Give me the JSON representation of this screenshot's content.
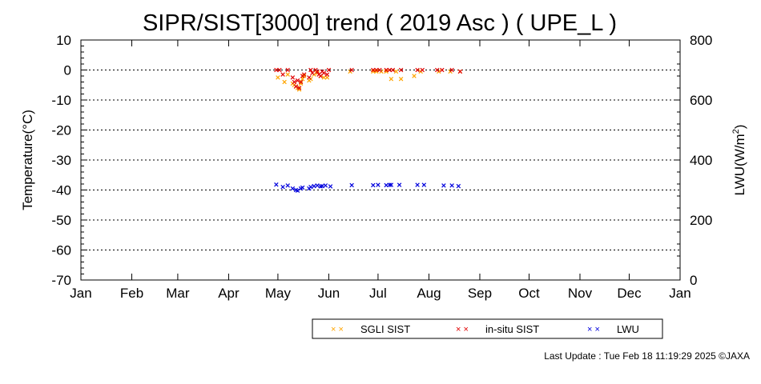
{
  "chart_data": {
    "type": "scatter",
    "title": "SIPR/SIST[3000] trend ( 2019 Asc ) ( UPE_L )",
    "xlabel": "",
    "ylabel": "Temperature(°C)",
    "y2label_main": "LWU(W/m",
    "y2label_sup": "2",
    "y2label_end": ")",
    "x_type": "date",
    "xlim": [
      "2019-01-01",
      "2020-01-01"
    ],
    "ylim": [
      -70,
      10
    ],
    "y2lim": [
      0,
      800
    ],
    "x_ticks": [
      "Jan",
      "Feb",
      "Mar",
      "Apr",
      "May",
      "Jun",
      "Jul",
      "Aug",
      "Sep",
      "Oct",
      "Nov",
      "Dec",
      "Jan"
    ],
    "y_ticks": [
      "10",
      "0",
      "-10",
      "-20",
      "-30",
      "-40",
      "-50",
      "-60",
      "-70"
    ],
    "y2_ticks": [
      "800",
      "600",
      "400",
      "200",
      "0"
    ],
    "grid": "horizontal dotted",
    "legend_position": "bottom",
    "marker": "×",
    "series": [
      {
        "name": "SGLI SIST",
        "axis": "left",
        "color": "#ffa500",
        "points": [
          [
            "2019-05-01",
            -2.5
          ],
          [
            "2019-05-05",
            -4.0
          ],
          [
            "2019-05-07",
            -1.5
          ],
          [
            "2019-05-10",
            -4.5
          ],
          [
            "2019-05-11",
            -5.0
          ],
          [
            "2019-05-12",
            -5.5
          ],
          [
            "2019-05-13",
            -6.0
          ],
          [
            "2019-05-14",
            -6.5
          ],
          [
            "2019-05-15",
            -4.5
          ],
          [
            "2019-05-16",
            -3.0
          ],
          [
            "2019-05-17",
            -2.0
          ],
          [
            "2019-05-20",
            -3.5
          ],
          [
            "2019-05-21",
            -3.0
          ],
          [
            "2019-05-23",
            -1.5
          ],
          [
            "2019-05-25",
            -1.0
          ],
          [
            "2019-05-27",
            -2.0
          ],
          [
            "2019-05-29",
            -2.5
          ],
          [
            "2019-05-31",
            -2.5
          ],
          [
            "2019-06-14",
            -0.5
          ],
          [
            "2019-06-28",
            -0.5
          ],
          [
            "2019-06-30",
            -0.5
          ],
          [
            "2019-07-03",
            -0.5
          ],
          [
            "2019-07-06",
            -0.5
          ],
          [
            "2019-07-09",
            -3.0
          ],
          [
            "2019-07-12",
            -0.5
          ],
          [
            "2019-07-15",
            -3.0
          ],
          [
            "2019-07-23",
            -2.0
          ],
          [
            "2019-07-27",
            -0.5
          ],
          [
            "2019-08-07",
            -0.5
          ],
          [
            "2019-08-14",
            -0.5
          ],
          [
            "2019-08-20",
            -0.5
          ]
        ]
      },
      {
        "name": "in-situ SIST",
        "axis": "left",
        "color": "#e00000",
        "points": [
          [
            "2019-04-30",
            0.0
          ],
          [
            "2019-05-02",
            0.0
          ],
          [
            "2019-05-04",
            -1.5
          ],
          [
            "2019-05-07",
            0.0
          ],
          [
            "2019-05-10",
            -2.5
          ],
          [
            "2019-05-11",
            -4.0
          ],
          [
            "2019-05-12",
            -5.5
          ],
          [
            "2019-05-13",
            -3.5
          ],
          [
            "2019-05-14",
            -6.0
          ],
          [
            "2019-05-15",
            -4.0
          ],
          [
            "2019-05-16",
            -2.0
          ],
          [
            "2019-05-17",
            -1.5
          ],
          [
            "2019-05-20",
            -2.5
          ],
          [
            "2019-05-21",
            0.0
          ],
          [
            "2019-05-22",
            -1.0
          ],
          [
            "2019-05-24",
            0.0
          ],
          [
            "2019-05-25",
            -0.5
          ],
          [
            "2019-05-26",
            -1.5
          ],
          [
            "2019-05-27",
            -2.0
          ],
          [
            "2019-05-28",
            -0.5
          ],
          [
            "2019-05-29",
            -1.0
          ],
          [
            "2019-05-31",
            -1.5
          ],
          [
            "2019-06-01",
            0.0
          ],
          [
            "2019-06-15",
            0.0
          ],
          [
            "2019-06-28",
            0.0
          ],
          [
            "2019-06-30",
            0.0
          ],
          [
            "2019-07-02",
            0.0
          ],
          [
            "2019-07-06",
            0.0
          ],
          [
            "2019-07-08",
            0.0
          ],
          [
            "2019-07-10",
            0.0
          ],
          [
            "2019-07-15",
            0.0
          ],
          [
            "2019-07-25",
            0.0
          ],
          [
            "2019-07-28",
            0.0
          ],
          [
            "2019-08-06",
            0.0
          ],
          [
            "2019-08-09",
            0.0
          ],
          [
            "2019-08-15",
            0.0
          ],
          [
            "2019-08-20",
            -0.5
          ]
        ]
      },
      {
        "name": "LWU",
        "axis": "right",
        "color": "#0000dd",
        "points": [
          [
            "2019-04-30",
            318
          ],
          [
            "2019-05-04",
            310
          ],
          [
            "2019-05-07",
            315
          ],
          [
            "2019-05-10",
            305
          ],
          [
            "2019-05-12",
            300
          ],
          [
            "2019-05-13",
            298
          ],
          [
            "2019-05-15",
            305
          ],
          [
            "2019-05-16",
            308
          ],
          [
            "2019-05-20",
            305
          ],
          [
            "2019-05-21",
            310
          ],
          [
            "2019-05-23",
            313
          ],
          [
            "2019-05-25",
            315
          ],
          [
            "2019-05-27",
            312
          ],
          [
            "2019-05-28",
            313
          ],
          [
            "2019-05-30",
            315
          ],
          [
            "2019-06-02",
            312
          ],
          [
            "2019-06-15",
            316
          ],
          [
            "2019-06-28",
            316
          ],
          [
            "2019-07-01",
            317
          ],
          [
            "2019-07-06",
            316
          ],
          [
            "2019-07-08",
            317
          ],
          [
            "2019-07-09",
            317
          ],
          [
            "2019-07-14",
            317
          ],
          [
            "2019-07-25",
            317
          ],
          [
            "2019-07-29",
            317
          ],
          [
            "2019-08-10",
            315
          ],
          [
            "2019-08-15",
            315
          ],
          [
            "2019-08-19",
            313
          ]
        ]
      }
    ]
  },
  "footer": {
    "last_update": "Last Update : Tue Feb 18 11:19:29 2025  ©JAXA"
  }
}
